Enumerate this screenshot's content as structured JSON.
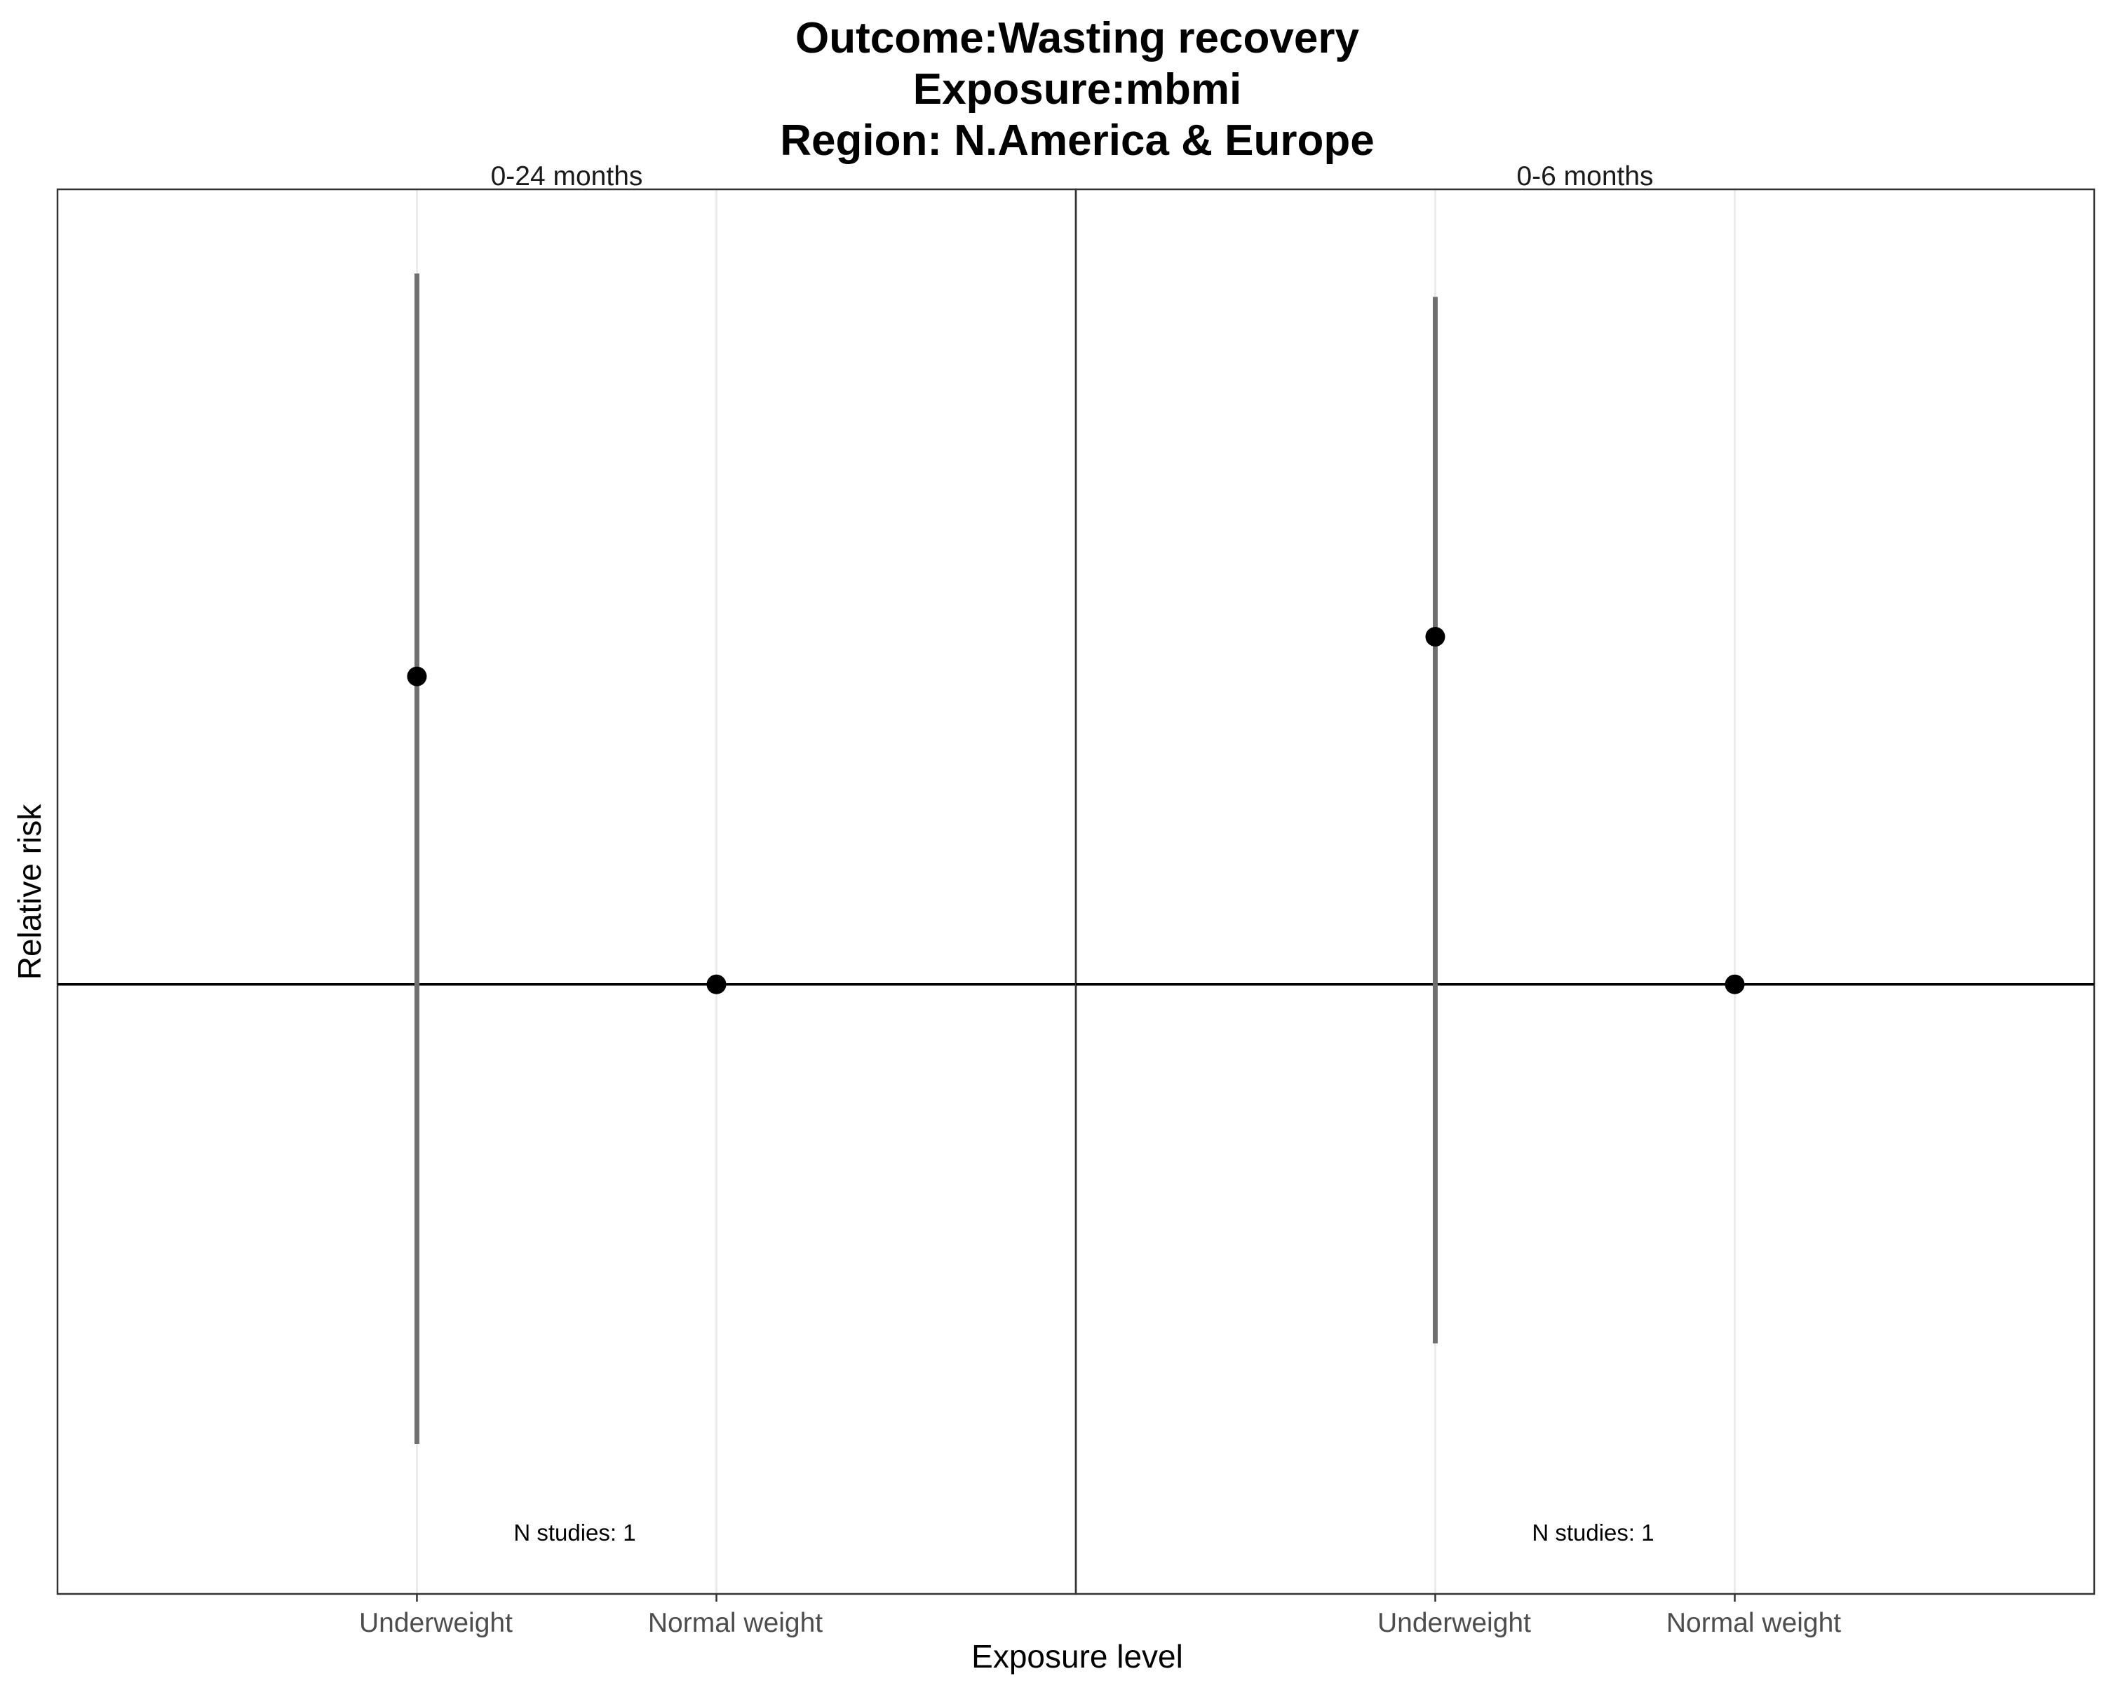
{
  "chart_data": {
    "type": "scatter",
    "title_lines": [
      "Outcome:Wasting recovery",
      "Exposure:mbmi",
      "Region: N.America & Europe"
    ],
    "xlabel": "Exposure level",
    "ylabel": "Relative risk",
    "categories": [
      "Underweight",
      "Normal weight"
    ],
    "y_scale": "log",
    "ylim": [
      0.42,
      3.1
    ],
    "reference_line": 1,
    "grid": "vertical-major",
    "point_color": "#000000",
    "errorbar_color": "#707070",
    "panels": [
      {
        "name": "0-24 months",
        "annotation": "N studies: 1",
        "points": [
          {
            "category": "Underweight",
            "rr": 1.55,
            "ci_lower": 0.52,
            "ci_upper": 2.75
          },
          {
            "category": "Normal weight",
            "rr": 1,
            "ci_lower": null,
            "ci_upper": null
          }
        ]
      },
      {
        "name": "0-6 months",
        "annotation": "N studies: 1",
        "points": [
          {
            "category": "Underweight",
            "rr": 1.64,
            "ci_lower": 0.6,
            "ci_upper": 2.66
          },
          {
            "category": "Normal weight",
            "rr": 1,
            "ci_lower": null,
            "ci_upper": null
          }
        ]
      }
    ]
  }
}
